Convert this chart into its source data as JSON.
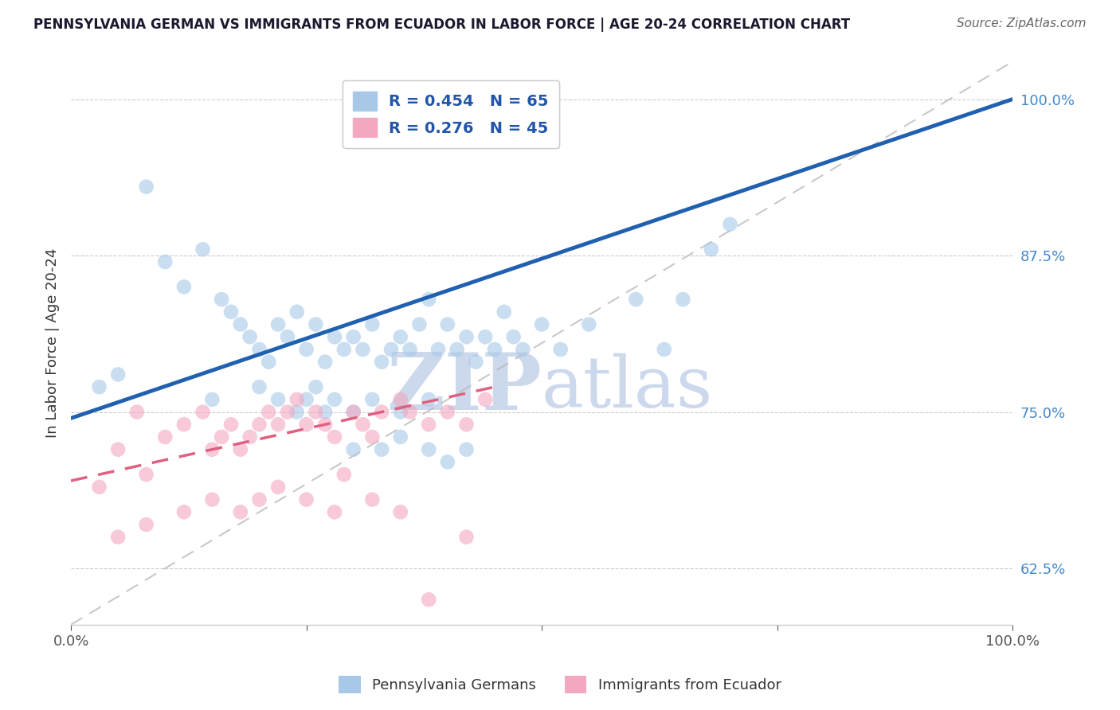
{
  "title": "PENNSYLVANIA GERMAN VS IMMIGRANTS FROM ECUADOR IN LABOR FORCE | AGE 20-24 CORRELATION CHART",
  "source": "Source: ZipAtlas.com",
  "ylabel": "In Labor Force | Age 20-24",
  "xlim": [
    0.0,
    100.0
  ],
  "ylim": [
    58.0,
    103.0
  ],
  "y_ticks": [
    62.5,
    75.0,
    87.5,
    100.0
  ],
  "blue_R": 0.454,
  "blue_N": 65,
  "pink_R": 0.276,
  "pink_N": 45,
  "blue_color": "#a8c8e8",
  "pink_color": "#f4a8c0",
  "blue_line_color": "#2060b0",
  "pink_line_color": "#e06080",
  "ref_line_color": "#bbbbbb",
  "background_color": "#ffffff",
  "watermark_color": "#ccd8ec",
  "title_color": "#1a1a2e",
  "source_color": "#666666",
  "blue_scatter_x": [
    8,
    10,
    12,
    14,
    16,
    17,
    18,
    19,
    20,
    21,
    22,
    23,
    24,
    25,
    26,
    27,
    28,
    29,
    30,
    31,
    32,
    33,
    34,
    35,
    36,
    37,
    38,
    39,
    40,
    41,
    42,
    43,
    44,
    45,
    46,
    47,
    48,
    50,
    52,
    55,
    60,
    63,
    65,
    68,
    70,
    3,
    5,
    15,
    20,
    22,
    24,
    25,
    26,
    27,
    28,
    30,
    32,
    35,
    38,
    30,
    33,
    35,
    38,
    40,
    42
  ],
  "blue_scatter_y": [
    93,
    87,
    85,
    88,
    84,
    83,
    82,
    81,
    80,
    79,
    82,
    81,
    83,
    80,
    82,
    79,
    81,
    80,
    81,
    80,
    82,
    79,
    80,
    81,
    80,
    82,
    84,
    80,
    82,
    80,
    81,
    79,
    81,
    80,
    83,
    81,
    80,
    82,
    80,
    82,
    84,
    80,
    84,
    88,
    90,
    77,
    78,
    76,
    77,
    76,
    75,
    76,
    77,
    75,
    76,
    75,
    76,
    75,
    76,
    72,
    72,
    73,
    72,
    71,
    72
  ],
  "pink_scatter_x": [
    3,
    5,
    7,
    8,
    10,
    12,
    14,
    15,
    16,
    17,
    18,
    19,
    20,
    21,
    22,
    23,
    24,
    25,
    26,
    27,
    28,
    29,
    30,
    31,
    32,
    33,
    35,
    36,
    38,
    40,
    42,
    44,
    5,
    8,
    12,
    15,
    18,
    20,
    22,
    25,
    28,
    32,
    35,
    38,
    42
  ],
  "pink_scatter_y": [
    69,
    72,
    75,
    70,
    73,
    74,
    75,
    72,
    73,
    74,
    72,
    73,
    74,
    75,
    74,
    75,
    76,
    74,
    75,
    74,
    73,
    70,
    75,
    74,
    73,
    75,
    76,
    75,
    74,
    75,
    74,
    76,
    65,
    66,
    67,
    68,
    67,
    68,
    69,
    68,
    67,
    68,
    67,
    60,
    65
  ],
  "blue_line_x0": 0,
  "blue_line_x1": 100,
  "blue_line_y0": 74.5,
  "blue_line_y1": 100.0,
  "pink_line_x0": 0,
  "pink_line_x1": 45,
  "pink_line_y0": 69.5,
  "pink_line_y1": 77.0,
  "ref_line_x": [
    0,
    100
  ],
  "ref_line_y0": 58.0,
  "ref_line_y1": 103.0
}
